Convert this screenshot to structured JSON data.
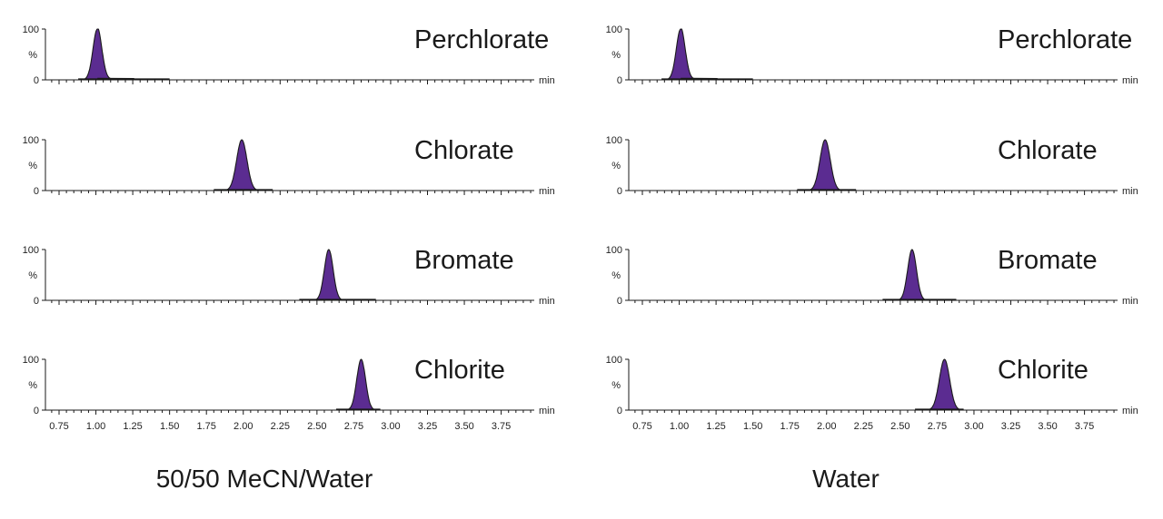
{
  "chart_data": {
    "type": "line",
    "description_free": true,
    "x_unit": "min",
    "y_unit": "%",
    "x_ticks": [
      "0.75",
      "1.00",
      "1.25",
      "1.50",
      "1.75",
      "2.00",
      "2.25",
      "2.50",
      "2.75",
      "3.00",
      "3.25",
      "3.50",
      "3.75"
    ],
    "x_range": [
      0.7,
      4.0
    ],
    "y_ticks": [
      "100",
      "0"
    ],
    "y_range": [
      0,
      100
    ],
    "colors": {
      "peak_fill": "#5b2c91",
      "line": "#1a1a1a"
    },
    "panels": [
      {
        "condition": "50/50 MeCN/Water",
        "traces": [
          {
            "analyte": "Perchlorate",
            "retention_time": 1.01,
            "width": 0.03,
            "baseline_range": [
              0.88,
              1.5
            ],
            "tail": 0.25
          },
          {
            "analyte": "Chlorate",
            "retention_time": 1.99,
            "width": 0.035,
            "baseline_range": [
              1.8,
              2.2
            ],
            "tail": 0.0
          },
          {
            "analyte": "Bromate",
            "retention_time": 2.58,
            "width": 0.03,
            "baseline_range": [
              2.38,
              2.9
            ],
            "tail": 0.0
          },
          {
            "analyte": "Chlorite",
            "retention_time": 2.8,
            "width": 0.03,
            "baseline_range": [
              2.63,
              2.93
            ],
            "tail": 0.0
          }
        ]
      },
      {
        "condition": "Water",
        "traces": [
          {
            "analyte": "Perchlorate",
            "retention_time": 1.01,
            "width": 0.03,
            "baseline_range": [
              0.88,
              1.5
            ],
            "tail": 0.25
          },
          {
            "analyte": "Chlorate",
            "retention_time": 1.99,
            "width": 0.035,
            "baseline_range": [
              1.8,
              2.2
            ],
            "tail": 0.0
          },
          {
            "analyte": "Bromate",
            "retention_time": 2.58,
            "width": 0.03,
            "baseline_range": [
              2.38,
              2.88
            ],
            "tail": 0.0
          },
          {
            "analyte": "Chlorite",
            "retention_time": 2.8,
            "width": 0.035,
            "baseline_range": [
              2.6,
              2.93
            ],
            "tail": 0.0
          }
        ]
      }
    ]
  }
}
